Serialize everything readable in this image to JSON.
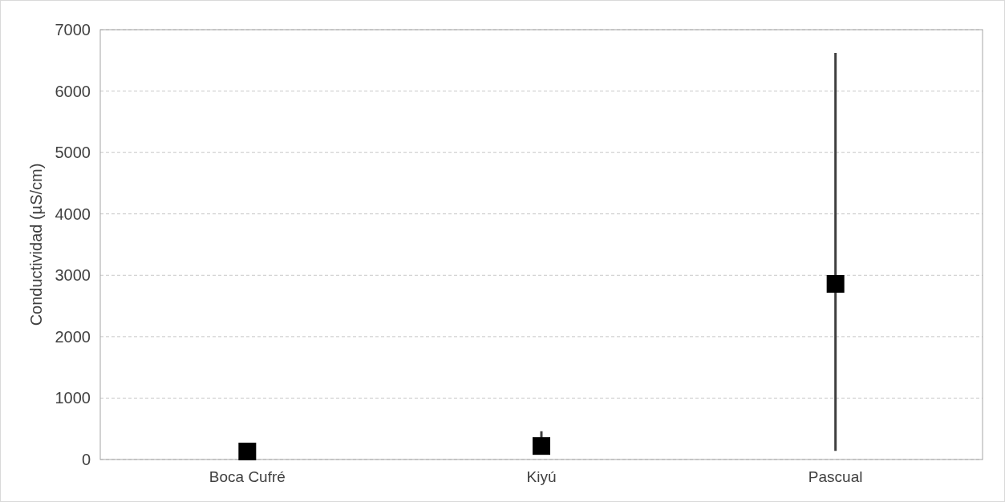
{
  "chart_data": {
    "type": "scatter",
    "ylabel": "Conductividad (µS/cm)",
    "categories": [
      "Boca Cufré",
      "Kiyú",
      "Pascual"
    ],
    "values": [
      130,
      220,
      2860
    ],
    "color": "#000000",
    "marker": "square",
    "errors": [
      null,
      [
        220,
        460
      ],
      [
        140,
        6620
      ]
    ],
    "ylim": [
      0,
      7000
    ],
    "yticks": [
      0,
      1000,
      2000,
      3000,
      4000,
      5000,
      6000,
      7000
    ],
    "grid": "y"
  }
}
